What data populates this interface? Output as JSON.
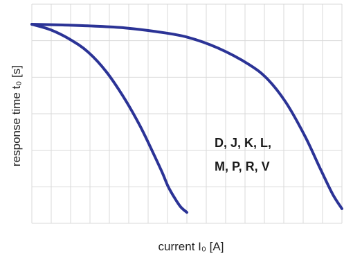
{
  "chart_data": {
    "type": "line",
    "title": "",
    "xlabel": "current I₀ [A]",
    "ylabel": "response time  t₀  [s]",
    "xlim": [
      0,
      10
    ],
    "ylim": [
      0,
      6
    ],
    "grid": true,
    "tick_labels_shown": false,
    "line_color": "#2b3396",
    "annotations": [
      {
        "text_lines": [
          "D, J, K, L,",
          "M, P, R, V"
        ],
        "x": 6.2,
        "y": 1.7
      }
    ],
    "series": [
      {
        "x": [
          0,
          0.6,
          1.2,
          1.8,
          2.4,
          3.0,
          3.5,
          3.9,
          4.2,
          4.4,
          4.6,
          4.8,
          5.0
        ],
        "values": [
          5.45,
          5.3,
          5.05,
          4.7,
          4.15,
          3.4,
          2.65,
          1.95,
          1.4,
          1.0,
          0.7,
          0.45,
          0.3
        ]
      },
      {
        "x": [
          0,
          1.0,
          2.0,
          3.0,
          4.0,
          5.0,
          6.0,
          7.0,
          7.6,
          8.2,
          8.8,
          9.3,
          9.7,
          10.0
        ],
        "values": [
          5.45,
          5.43,
          5.4,
          5.35,
          5.25,
          5.1,
          4.8,
          4.35,
          3.95,
          3.3,
          2.4,
          1.5,
          0.8,
          0.4
        ]
      }
    ]
  }
}
